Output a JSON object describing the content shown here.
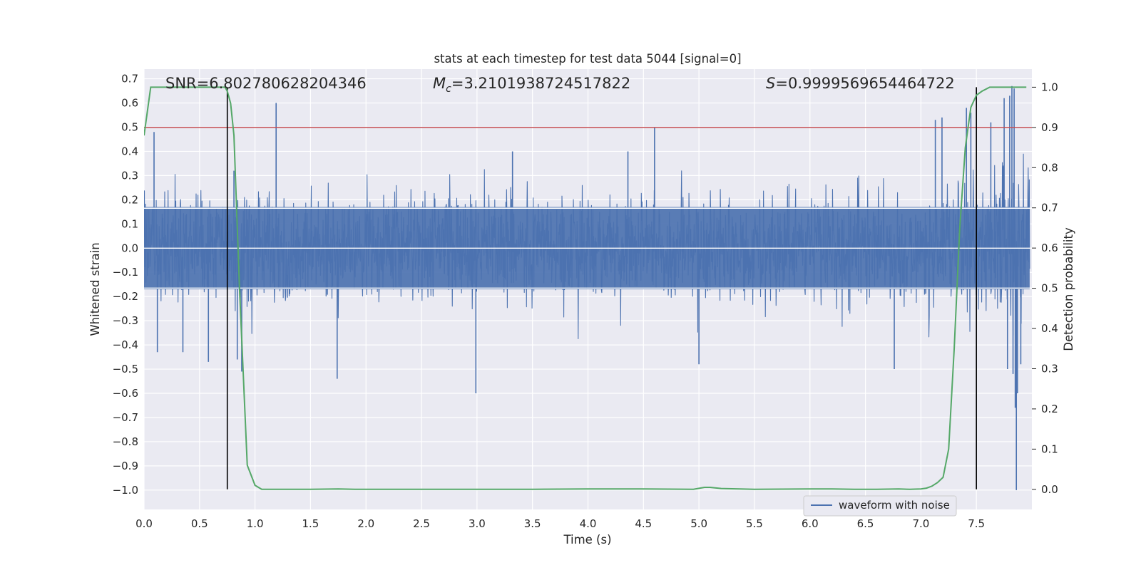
{
  "chart_data": {
    "type": "line",
    "title": "stats at each timestep for test data 5044 [signal=0]",
    "xlabel": "Time (s)",
    "ylabel_left": "Whitened strain",
    "ylabel_right": "Detection probability",
    "xlim": [
      0.0,
      8.0
    ],
    "ylim_left": [
      -1.08,
      0.74
    ],
    "ylim_right": [
      -0.05,
      1.045
    ],
    "x_ticks": [
      "0.0",
      "0.5",
      "1.0",
      "1.5",
      "2.0",
      "2.5",
      "3.0",
      "3.5",
      "4.0",
      "4.5",
      "5.0",
      "5.5",
      "6.0",
      "6.5",
      "7.0",
      "7.5"
    ],
    "y_ticks_left": [
      "0.7",
      "0.6",
      "0.5",
      "0.4",
      "0.3",
      "0.2",
      "0.1",
      "0.0",
      "−0.1",
      "−0.2",
      "−0.3",
      "−0.4",
      "−0.5",
      "−0.6",
      "−0.7",
      "−0.8",
      "−0.9",
      "−1.0"
    ],
    "y_ticks_right": [
      "1.0",
      "0.9",
      "0.8",
      "0.7",
      "0.6",
      "0.5",
      "0.4",
      "0.3",
      "0.2",
      "0.1",
      "0.0"
    ],
    "grid": true,
    "legend": {
      "entries": [
        "waveform with noise"
      ],
      "placement": "bottom-right"
    },
    "annotations": {
      "snr": {
        "label": "SNR",
        "value": "6.802780628204346"
      },
      "mc": {
        "label": "M",
        "subscript": "c",
        "value": "3.2101938724517822"
      },
      "s": {
        "label": "S",
        "value": "0.9999569654464722"
      }
    },
    "series": [
      {
        "name": "waveform with noise",
        "axis": "left",
        "color": "#4c72b0",
        "description": "whitened noisy strain, sampled over 0 to 7.98 s",
        "envelope": {
          "core_abs": 0.17,
          "typical_max": 0.33,
          "typical_min": -0.33
        },
        "peaks": [
          {
            "x": 0.09,
            "y": 0.48
          },
          {
            "x": 0.12,
            "y": -0.43
          },
          {
            "x": 0.35,
            "y": -0.43
          },
          {
            "x": 0.58,
            "y": -0.47
          },
          {
            "x": 0.81,
            "y": 0.32
          },
          {
            "x": 0.84,
            "y": -0.46
          },
          {
            "x": 0.88,
            "y": -0.51
          },
          {
            "x": 1.19,
            "y": 0.6
          },
          {
            "x": 1.74,
            "y": -0.54
          },
          {
            "x": 2.99,
            "y": -0.6
          },
          {
            "x": 3.32,
            "y": 0.4
          },
          {
            "x": 4.36,
            "y": 0.4
          },
          {
            "x": 4.6,
            "y": 0.5
          },
          {
            "x": 5.0,
            "y": -0.48
          },
          {
            "x": 6.76,
            "y": -0.5
          },
          {
            "x": 7.13,
            "y": 0.53
          },
          {
            "x": 7.19,
            "y": 0.54
          },
          {
            "x": 7.41,
            "y": 0.58
          },
          {
            "x": 7.45,
            "y": 0.56
          },
          {
            "x": 7.63,
            "y": 0.52
          },
          {
            "x": 7.75,
            "y": 0.62
          },
          {
            "x": 7.8,
            "y": 0.63
          },
          {
            "x": 7.82,
            "y": 0.67
          },
          {
            "x": 7.84,
            "y": 0.66
          },
          {
            "x": 7.78,
            "y": -0.5
          },
          {
            "x": 7.83,
            "y": -0.52
          },
          {
            "x": 7.85,
            "y": -0.66
          },
          {
            "x": 7.86,
            "y": -1.0
          },
          {
            "x": 7.87,
            "y": -0.6
          },
          {
            "x": 7.9,
            "y": -0.48
          }
        ]
      },
      {
        "name": "detection probability",
        "axis": "right",
        "color": "#55a868",
        "x": [
          0.0,
          0.06,
          0.12,
          0.25,
          0.5,
          0.68,
          0.73,
          0.75,
          0.78,
          0.81,
          0.86,
          0.93,
          1.0,
          1.06,
          1.2,
          1.5,
          1.75,
          1.9,
          2.5,
          3.0,
          3.5,
          4.0,
          4.5,
          4.95,
          5.05,
          5.1,
          5.2,
          5.5,
          6.0,
          6.2,
          6.4,
          6.6,
          6.8,
          6.9,
          7.0,
          7.05,
          7.1,
          7.15,
          7.2,
          7.25,
          7.3,
          7.35,
          7.4,
          7.45,
          7.5,
          7.55,
          7.62,
          7.7,
          7.8,
          7.9,
          7.95
        ],
        "y": [
          0.88,
          1.0,
          1.0,
          1.0,
          1.0,
          1.0,
          1.0,
          0.99,
          0.96,
          0.88,
          0.5,
          0.06,
          0.01,
          0.0,
          0.0,
          0.0,
          0.001,
          0.0,
          0.0,
          0.0,
          0.0,
          0.001,
          0.001,
          0.0,
          0.005,
          0.005,
          0.002,
          0.0,
          0.001,
          0.001,
          0.0,
          0.0,
          0.001,
          0.0,
          0.001,
          0.003,
          0.008,
          0.017,
          0.03,
          0.1,
          0.35,
          0.65,
          0.85,
          0.95,
          0.98,
          0.99,
          1.0,
          1.0,
          1.0,
          1.0,
          1.0
        ]
      }
    ],
    "reference_lines": {
      "horizontal_right_axis": {
        "value": 0.9,
        "color": "#c44e52"
      },
      "horizontal_left_axis_white": [
        0.165,
        0.0,
        -0.165
      ],
      "vertical_black": [
        0.75,
        7.5
      ]
    }
  }
}
